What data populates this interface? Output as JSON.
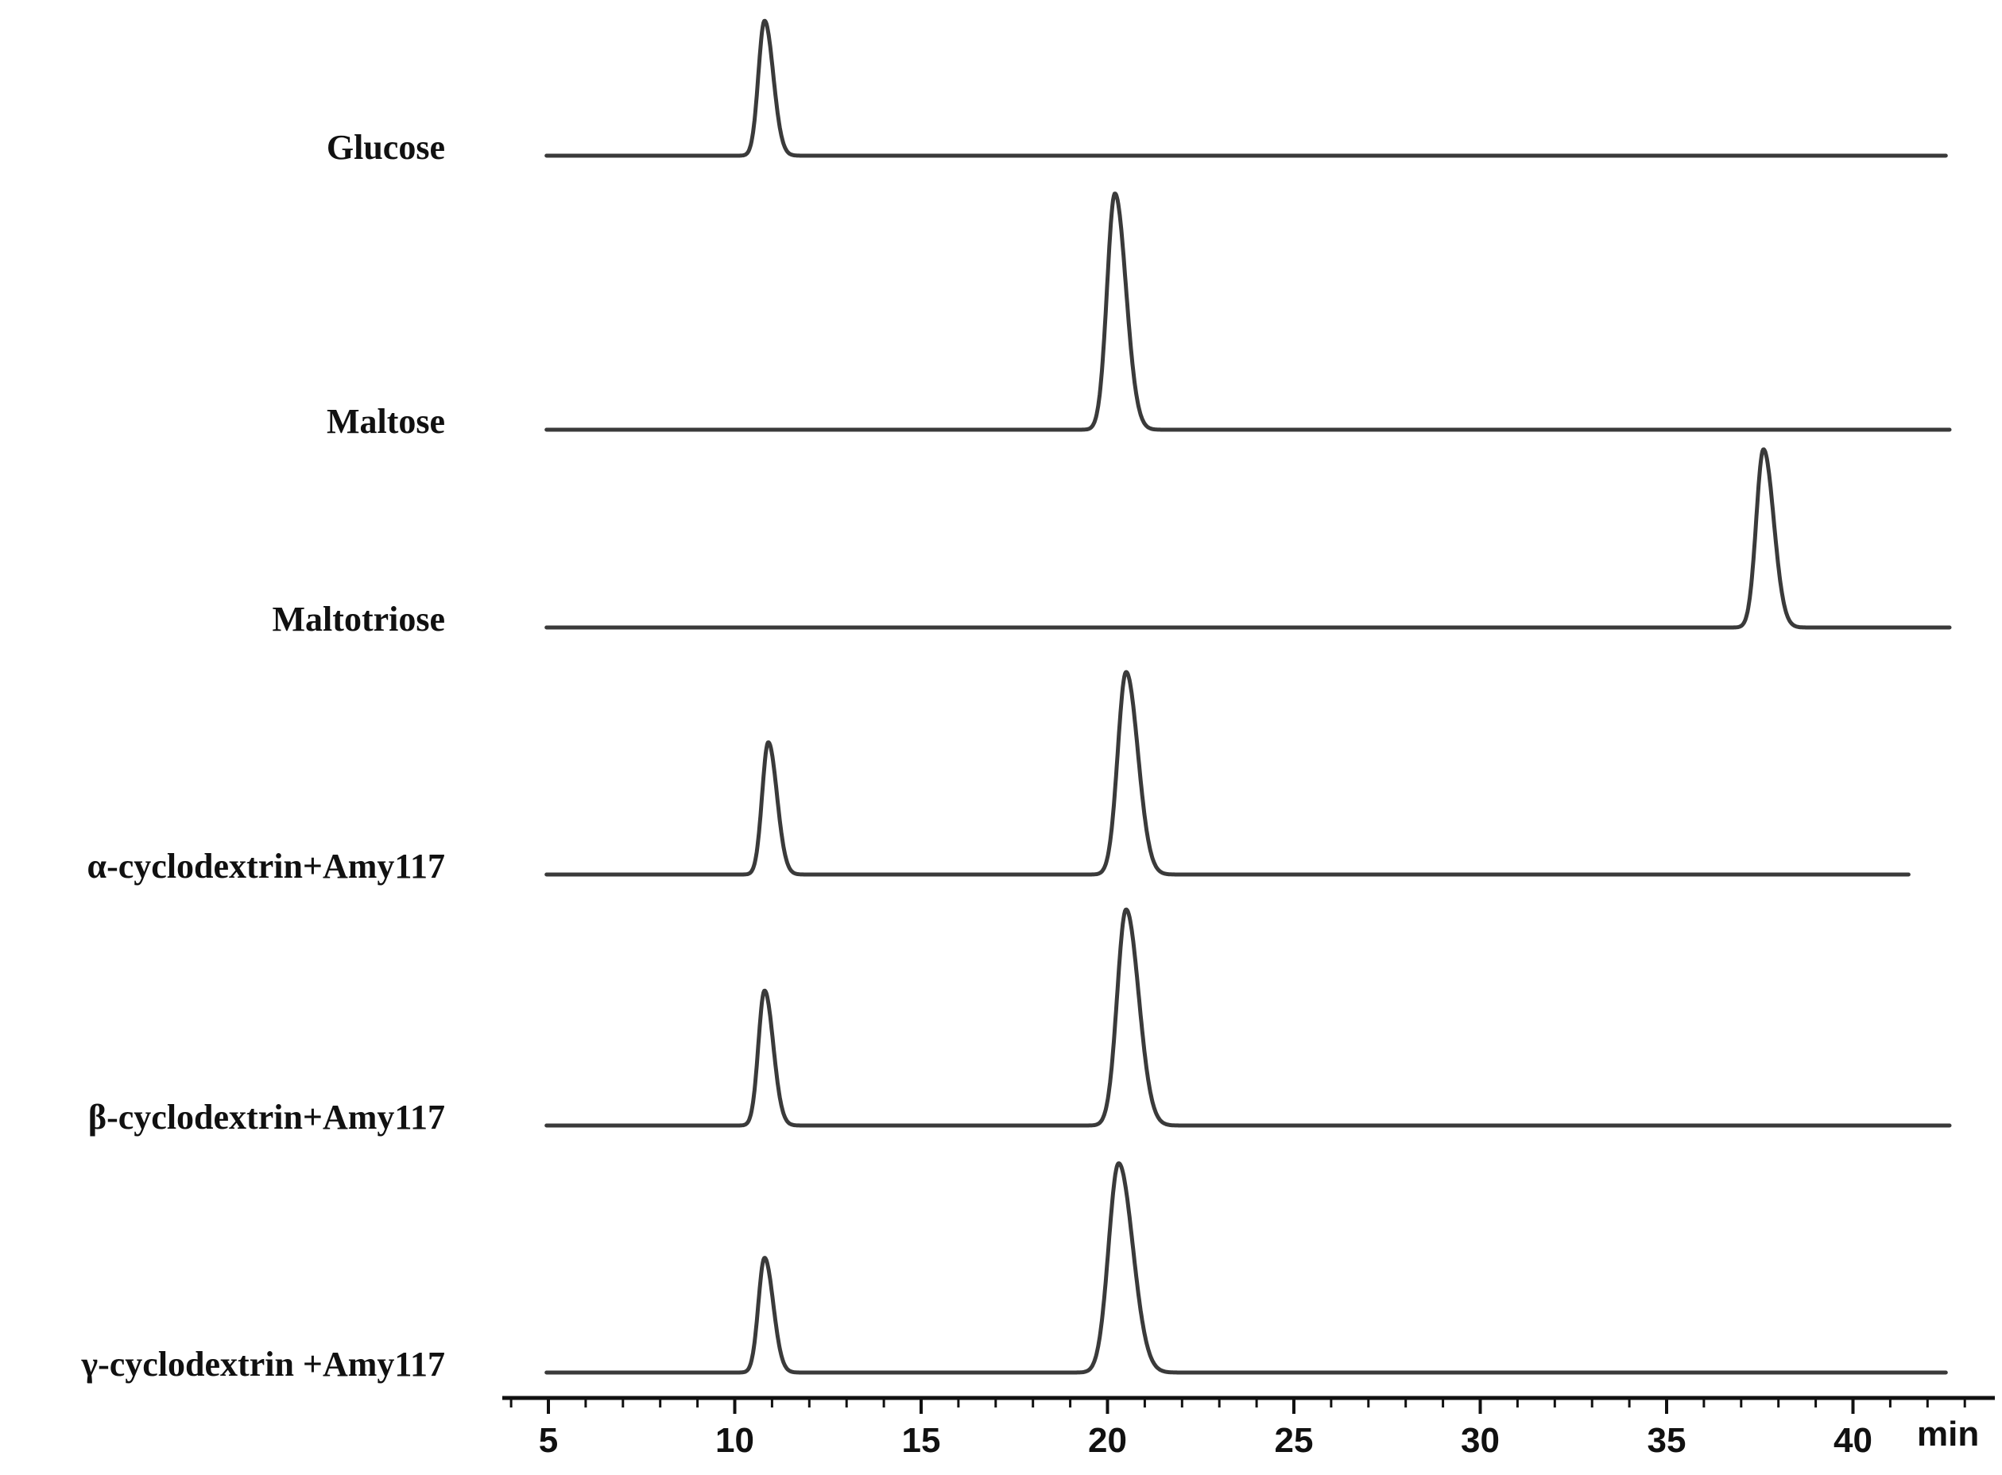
{
  "chart_data": {
    "type": "line",
    "subtype": "stacked chromatogram",
    "title": "",
    "xlabel": "",
    "x_unit": "min",
    "ylabel": "",
    "xlim": [
      4,
      43
    ],
    "x_ticks": [
      5,
      10,
      15,
      20,
      25,
      30,
      35,
      40
    ],
    "grid": false,
    "legend": "none",
    "line_color": "#3a3a3a",
    "series": [
      {
        "name": "Glucose",
        "x_end": 42.5,
        "peaks": [
          {
            "x": 10.8,
            "height": 1.0,
            "width": 0.22
          }
        ]
      },
      {
        "name": "Maltose",
        "x_end": 42.6,
        "peaks": [
          {
            "x": 20.2,
            "height": 1.75,
            "width": 0.28
          }
        ]
      },
      {
        "name": "Maltotriose",
        "x_end": 42.6,
        "peaks": [
          {
            "x": 37.6,
            "height": 1.32,
            "width": 0.26
          }
        ]
      },
      {
        "name": "α-cyclodextrin+Amy117",
        "x_end": 41.5,
        "peaks": [
          {
            "x": 10.9,
            "height": 0.98,
            "width": 0.22
          },
          {
            "x": 20.5,
            "height": 1.5,
            "width": 0.3
          }
        ]
      },
      {
        "name": "β-cyclodextrin+Amy117",
        "x_end": 42.6,
        "peaks": [
          {
            "x": 10.8,
            "height": 1.0,
            "width": 0.22
          },
          {
            "x": 20.5,
            "height": 1.6,
            "width": 0.32
          }
        ]
      },
      {
        "name": "γ-cyclodextrin +Amy117",
        "x_end": 42.5,
        "peaks": [
          {
            "x": 10.8,
            "height": 0.85,
            "width": 0.22
          },
          {
            "x": 20.3,
            "height": 1.55,
            "width": 0.36
          }
        ]
      }
    ]
  }
}
